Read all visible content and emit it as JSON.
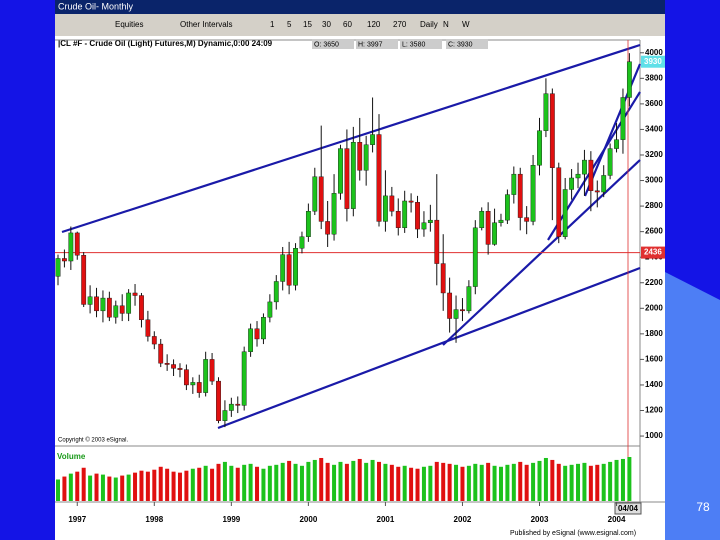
{
  "window": {
    "title": "Crude Oil- Monthly",
    "toolbar": [
      "Equities",
      "Other Intervals",
      "1",
      "5",
      "15",
      "30",
      "60",
      "120",
      "270",
      "Daily",
      "N",
      "W"
    ],
    "symbol_line": "|CL #F - Crude Oil (Light) Futures,M) Dynamic,0:00 24:09",
    "quote": [
      "O: 3650",
      "H: 3997",
      "L: 3580",
      "C: 3930"
    ],
    "copyright": "Copyright © 2003 eSignal.",
    "cursor_date": "04/04",
    "published": "Published by eSignal (www.esignal.com)",
    "page_number": "78"
  },
  "chart_data": {
    "type": "candlestick",
    "categories": [
      null,
      null,
      null,
      "1997",
      null,
      null,
      null,
      null,
      null,
      null,
      null,
      null,
      null,
      null,
      null,
      "1998",
      null,
      null,
      null,
      null,
      null,
      null,
      null,
      null,
      null,
      null,
      null,
      "1999",
      null,
      null,
      null,
      null,
      null,
      null,
      null,
      null,
      null,
      null,
      null,
      "2000",
      null,
      null,
      null,
      null,
      null,
      null,
      null,
      null,
      null,
      null,
      null,
      "2001",
      null,
      null,
      null,
      null,
      null,
      null,
      null,
      null,
      null,
      null,
      null,
      "2002",
      null,
      null,
      null,
      null,
      null,
      null,
      null,
      null,
      null,
      null,
      null,
      "2003",
      null,
      null,
      null,
      null,
      null,
      null,
      null,
      null,
      null,
      null,
      null,
      "2004",
      null,
      null
    ],
    "open": [
      2250,
      2390,
      2370,
      2590,
      2415,
      2030,
      2090,
      1980,
      2080,
      1930,
      2020,
      1960,
      2120,
      2100,
      1910,
      1780,
      1720,
      1570,
      1560,
      1530,
      1520,
      1400,
      1420,
      1340,
      1600,
      1430,
      1120,
      1200,
      1250,
      1240,
      1660,
      1840,
      1760,
      1930,
      2050,
      2210,
      2420,
      2180,
      2470,
      2560,
      2760,
      3030,
      2680,
      2580,
      2900,
      3250,
      2780,
      3300,
      3080,
      3280,
      3360,
      2680,
      2880,
      2760,
      2630,
      2840,
      2830,
      2620,
      2670,
      2690,
      2350,
      2120,
      1920,
      1990,
      1980,
      2170,
      2630,
      2760,
      2500,
      2670,
      2690,
      2890,
      3050,
      2710,
      2680,
      3120,
      3390,
      3680,
      3100,
      2560,
      2930,
      3020,
      3050,
      3160,
      2920,
      2910,
      3040,
      3250,
      3320,
      3650
    ],
    "high": [
      2420,
      2460,
      2640,
      2600,
      2440,
      2180,
      2160,
      2140,
      2130,
      2060,
      2110,
      2150,
      2190,
      2120,
      1980,
      1820,
      1760,
      1640,
      1600,
      1570,
      1560,
      1460,
      1480,
      1660,
      1650,
      1460,
      1280,
      1300,
      1310,
      1700,
      1880,
      1900,
      1960,
      2110,
      2260,
      2480,
      2520,
      2510,
      2600,
      2820,
      3100,
      3430,
      2840,
      3050,
      3280,
      3400,
      3420,
      3490,
      3350,
      3650,
      3520,
      3080,
      2950,
      2860,
      2920,
      2900,
      2880,
      2760,
      2810,
      3050,
      2580,
      2240,
      2100,
      2080,
      2220,
      2690,
      2790,
      2830,
      2780,
      2740,
      2930,
      3110,
      3100,
      2800,
      3200,
      3490,
      3800,
      3720,
      3140,
      3020,
      3090,
      3140,
      3240,
      3230,
      3000,
      3120,
      3290,
      3450,
      3720,
      3997
    ],
    "low": [
      2180,
      2320,
      2300,
      2380,
      2010,
      1960,
      1930,
      1890,
      1900,
      1880,
      1900,
      1900,
      2020,
      1850,
      1740,
      1680,
      1540,
      1510,
      1470,
      1460,
      1360,
      1330,
      1300,
      1310,
      1400,
      1100,
      1070,
      1150,
      1180,
      1200,
      1620,
      1700,
      1720,
      1890,
      1990,
      2140,
      2110,
      2140,
      2430,
      2520,
      2730,
      2620,
      2480,
      2530,
      2850,
      2680,
      2720,
      3000,
      2960,
      3220,
      2640,
      2600,
      2720,
      2570,
      2590,
      2750,
      2550,
      2560,
      2600,
      2180,
      1980,
      1810,
      1730,
      1900,
      1960,
      2110,
      2610,
      2420,
      2490,
      2640,
      2660,
      2820,
      2610,
      2580,
      2650,
      3040,
      3340,
      2690,
      2510,
      2540,
      2850,
      2940,
      2880,
      2760,
      2790,
      2870,
      3010,
      3220,
      3210,
      3580
    ],
    "close": [
      2390,
      2370,
      2590,
      2415,
      2030,
      2090,
      1980,
      2080,
      1930,
      2020,
      1960,
      2120,
      2100,
      1910,
      1780,
      1720,
      1570,
      1560,
      1530,
      1520,
      1400,
      1420,
      1340,
      1600,
      1430,
      1120,
      1200,
      1250,
      1240,
      1660,
      1840,
      1760,
      1930,
      2050,
      2210,
      2420,
      2180,
      2470,
      2560,
      2760,
      3030,
      2680,
      2580,
      2900,
      3250,
      2780,
      3300,
      3080,
      3280,
      3360,
      2680,
      2880,
      2760,
      2630,
      2840,
      2830,
      2620,
      2670,
      2690,
      2350,
      2120,
      1920,
      1990,
      1980,
      2170,
      2630,
      2760,
      2500,
      2670,
      2690,
      2890,
      3050,
      2710,
      2680,
      3120,
      3390,
      3680,
      3100,
      2560,
      2930,
      3020,
      3050,
      3160,
      2920,
      2910,
      3040,
      3250,
      3320,
      3650,
      3930
    ],
    "volume": [
      22,
      25,
      28,
      30,
      34,
      26,
      28,
      27,
      25,
      24,
      26,
      27,
      29,
      31,
      30,
      32,
      35,
      33,
      30,
      29,
      31,
      33,
      34,
      36,
      33,
      38,
      40,
      36,
      34,
      37,
      38,
      35,
      33,
      36,
      37,
      39,
      41,
      38,
      36,
      40,
      42,
      44,
      39,
      37,
      40,
      38,
      41,
      43,
      39,
      42,
      40,
      38,
      37,
      35,
      36,
      34,
      33,
      35,
      36,
      40,
      39,
      38,
      37,
      35,
      36,
      38,
      37,
      39,
      36,
      35,
      37,
      38,
      40,
      37,
      39,
      41,
      44,
      42,
      38,
      36,
      37,
      38,
      39,
      36,
      37,
      38,
      40,
      42,
      43,
      45
    ],
    "volume_label": "Volume",
    "up_color": "#1cc21c",
    "down_color": "#e01010",
    "ylim": [
      930,
      4100
    ],
    "yticks": [
      1000,
      1200,
      1400,
      1600,
      1800,
      2000,
      2200,
      2400,
      2600,
      2800,
      3000,
      3200,
      3400,
      3600,
      3800,
      4000
    ],
    "ref_line": 2436,
    "grid": false
  }
}
